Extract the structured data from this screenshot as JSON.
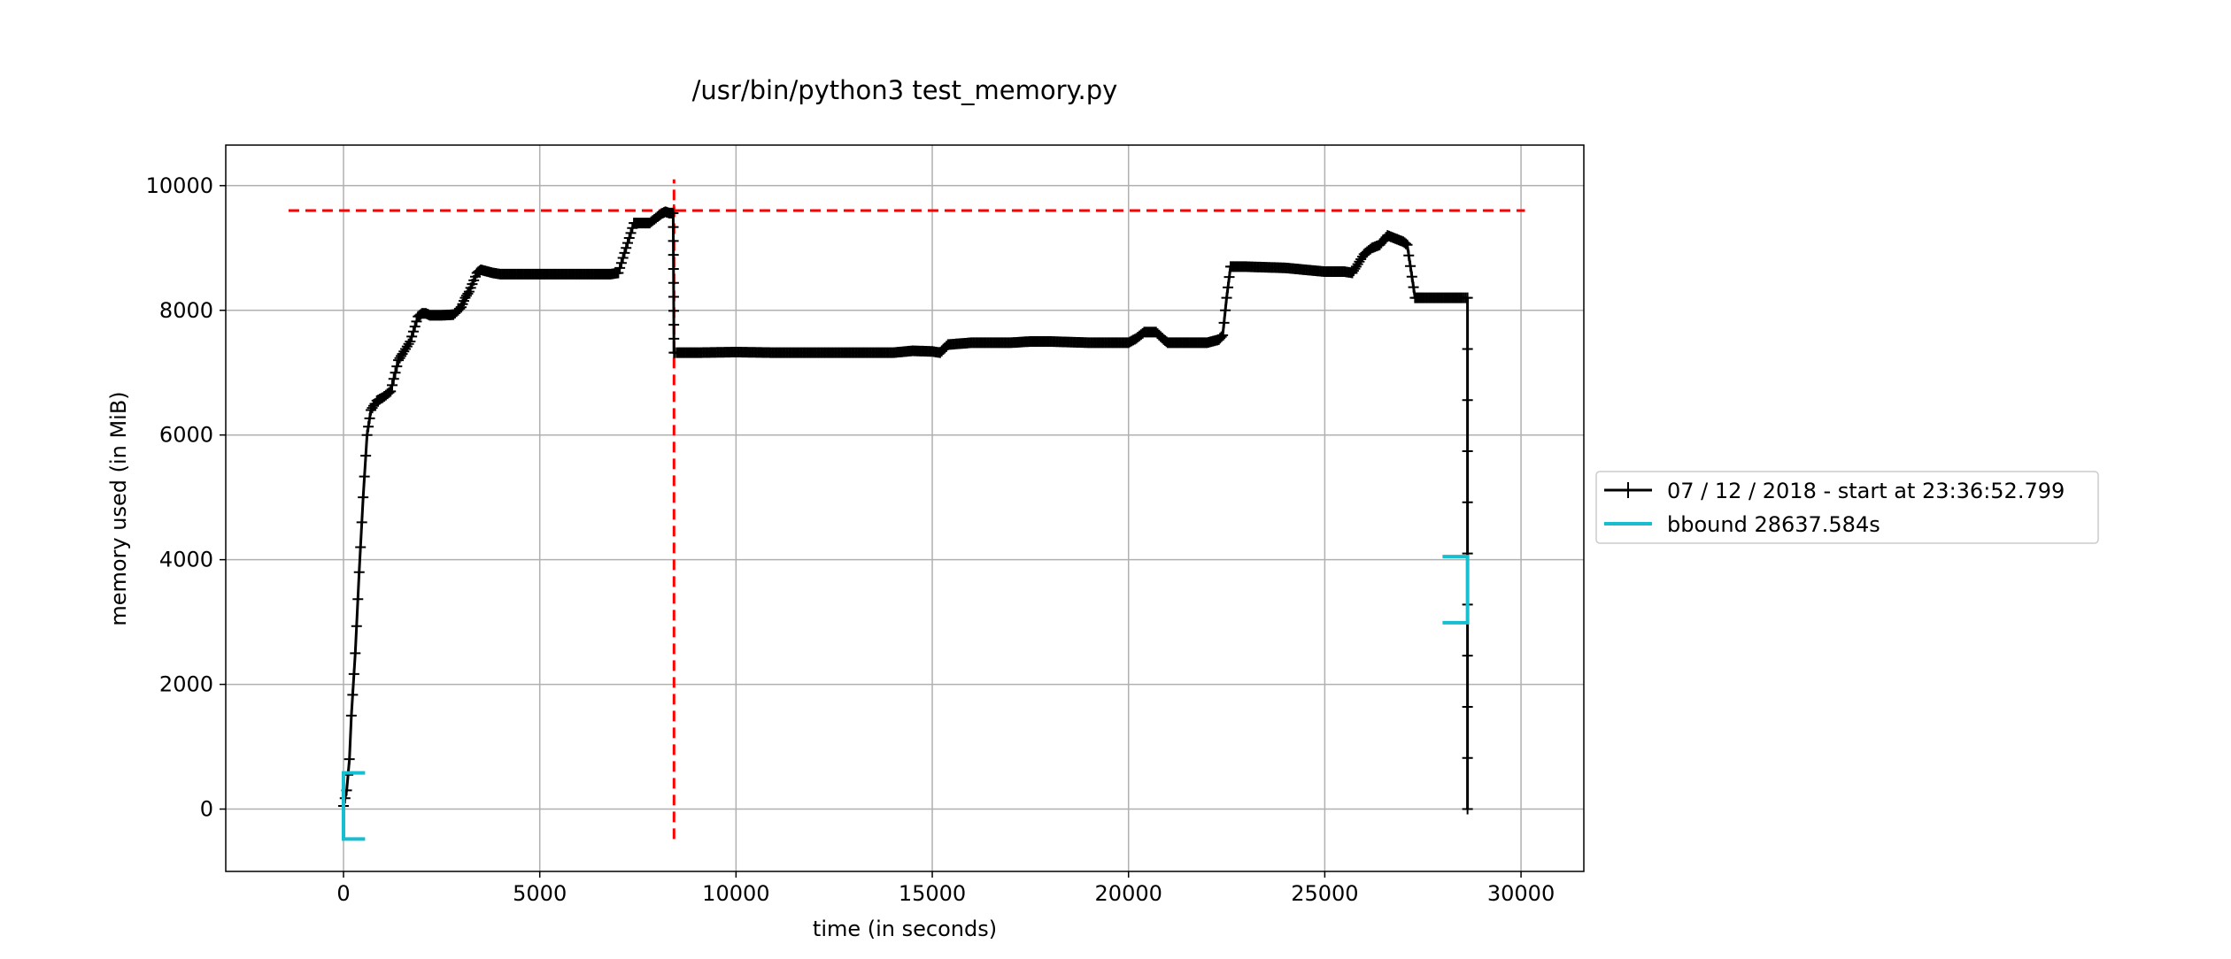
{
  "chart_data": {
    "type": "line",
    "title": "/usr/bin/python3 test_memory.py",
    "xlabel": "time (in seconds)",
    "ylabel": "memory used (in MiB)",
    "xlim": [
      -3000,
      31600
    ],
    "ylim": [
      -1000,
      10650
    ],
    "xticks": [
      0,
      5000,
      10000,
      15000,
      20000,
      25000,
      30000
    ],
    "yticks": [
      0,
      2000,
      4000,
      6000,
      8000,
      10000
    ],
    "grid": true,
    "legend_placement": "center-right outside",
    "series": [
      {
        "name": "07 / 12 / 2018 - start at 23:36:52.799",
        "color": "#000000",
        "marker": "+",
        "x": [
          0,
          80,
          150,
          200,
          300,
          400,
          500,
          600,
          700,
          800,
          850,
          1000,
          1200,
          1400,
          1500,
          1700,
          1900,
          2000,
          2100,
          2200,
          2500,
          2800,
          3000,
          3100,
          3200,
          3400,
          3500,
          3800,
          4000,
          4500,
          5000,
          5500,
          6000,
          6500,
          6800,
          7000,
          7200,
          7400,
          7500,
          7800,
          8000,
          8100,
          8200,
          8300,
          8400,
          8420,
          8450,
          8500,
          9000,
          10000,
          11000,
          12000,
          13000,
          14000,
          14500,
          15000,
          15200,
          15400,
          16000,
          17000,
          17500,
          18000,
          19000,
          20000,
          20200,
          20400,
          20700,
          20900,
          21000,
          21500,
          22000,
          22300,
          22400,
          22500,
          22600,
          22700,
          23000,
          24000,
          25000,
          25500,
          25700,
          25800,
          26000,
          26200,
          26400,
          26600,
          26800,
          27000,
          27100,
          27300,
          27400,
          27500,
          28000,
          28500,
          28637,
          28637
        ],
        "y": [
          50,
          300,
          800,
          1500,
          2500,
          3800,
          5000,
          6000,
          6400,
          6500,
          6550,
          6600,
          6700,
          7200,
          7300,
          7500,
          7900,
          7950,
          7950,
          7920,
          7920,
          7930,
          8050,
          8200,
          8300,
          8600,
          8650,
          8600,
          8580,
          8580,
          8580,
          8580,
          8580,
          8580,
          8580,
          8600,
          9000,
          9400,
          9400,
          9400,
          9500,
          9550,
          9580,
          9560,
          9560,
          7320,
          7320,
          7320,
          7320,
          7330,
          7320,
          7320,
          7320,
          7320,
          7350,
          7340,
          7320,
          7450,
          7480,
          7480,
          7500,
          7500,
          7480,
          7480,
          7550,
          7650,
          7650,
          7530,
          7480,
          7480,
          7480,
          7530,
          7600,
          8200,
          8700,
          8700,
          8700,
          8680,
          8620,
          8620,
          8600,
          8700,
          8900,
          9000,
          9050,
          9200,
          9150,
          9100,
          9050,
          8200,
          8200,
          8200,
          8200,
          8200,
          8200,
          0
        ]
      },
      {
        "name": "bbound 28637.584s",
        "color": "#17becf",
        "marker": "bracket",
        "brackets": [
          {
            "x": [
              0,
              550
            ],
            "y": [
              -480,
              580
            ]
          },
          {
            "x": [
              28000,
              28637
            ],
            "y": [
              2990,
              4050
            ]
          }
        ]
      }
    ],
    "max_markers": {
      "color": "#ff0000",
      "x": 8420,
      "y": 9600,
      "hline_x": [
        -1400,
        30100
      ],
      "vline_y": [
        -480,
        10100
      ]
    },
    "peak_annotation": {
      "x": 8420,
      "y": 9600
    }
  }
}
